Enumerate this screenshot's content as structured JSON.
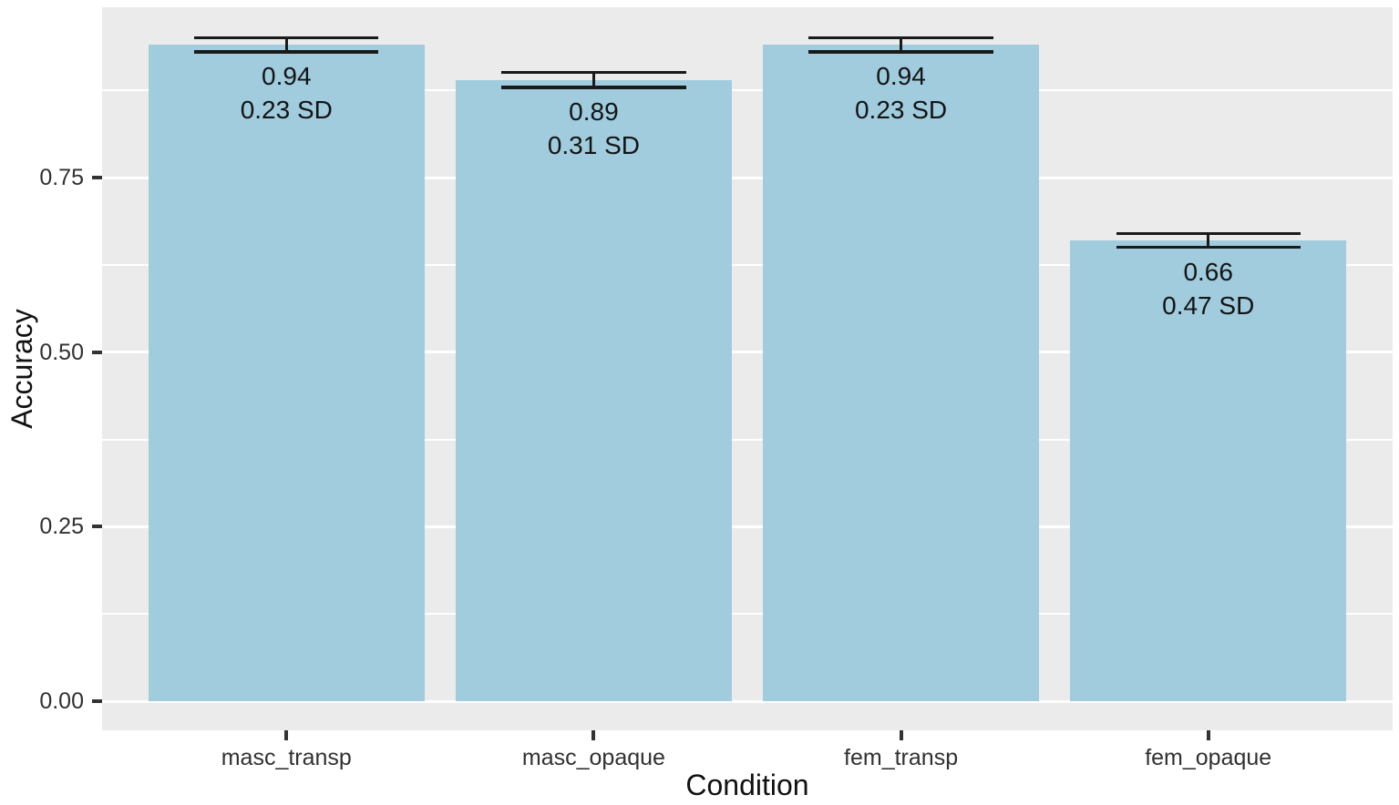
{
  "chart_data": {
    "type": "bar",
    "title": "",
    "xlabel": "Condition",
    "ylabel": "Accuracy",
    "categories": [
      "masc_transp",
      "masc_opaque",
      "fem_transp",
      "fem_opaque"
    ],
    "values": [
      0.94,
      0.89,
      0.94,
      0.66
    ],
    "errors": [
      0.01,
      0.011,
      0.01,
      0.01
    ],
    "sd_values": [
      0.23,
      0.31,
      0.23,
      0.47
    ],
    "bar_labels": [
      "0.94\n0.23 SD",
      "0.89\n0.31 SD",
      "0.94\n0.23 SD",
      "0.66\n0.47 SD"
    ],
    "y_ticks": [
      0.0,
      0.25,
      0.5,
      0.75
    ],
    "y_tick_labels": [
      "0.00",
      "0.25",
      "0.50",
      "0.75"
    ],
    "y_minor_ticks": [
      0.125,
      0.375,
      0.625,
      0.875
    ],
    "ylim": [
      -0.0417,
      0.994
    ],
    "grid": true,
    "legend": "none",
    "colors": {
      "bar_fill": "#A0CCDE",
      "panel_bg": "#EBEBEB",
      "grid": "#FFFFFF",
      "error_bar": "#1A1A1A",
      "axis_text": "#313131"
    }
  }
}
